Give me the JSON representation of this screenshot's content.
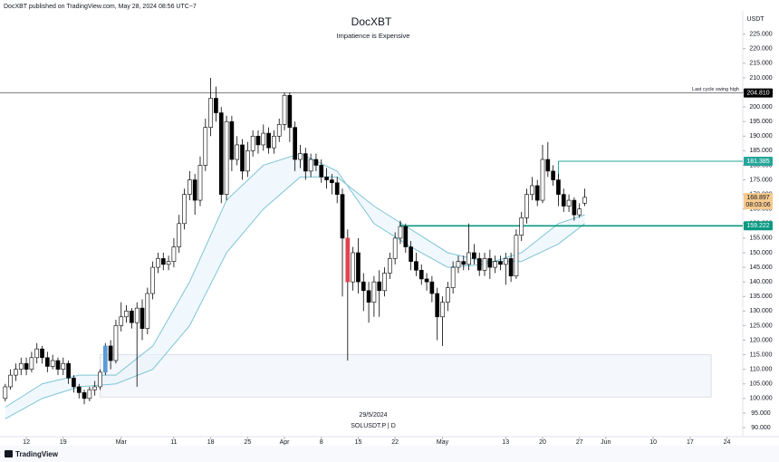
{
  "header": {
    "text": "DocXBT published on TradingView.com, May 28, 2024 08:56 UTC−7"
  },
  "footer": {
    "brand": "TradingView"
  },
  "chart_data": {
    "type": "candlestick",
    "title": "DocXBT",
    "subtitle": "Impatience is Expensive",
    "y_unit": "USDT",
    "symbol": "SOLUSDT.P | D",
    "crosshair_date": "29/5/2024",
    "x": [
      "2024-02-08",
      "2024-02-09",
      "2024-02-10",
      "2024-02-11",
      "2024-02-12",
      "2024-02-13",
      "2024-02-14",
      "2024-02-15",
      "2024-02-16",
      "2024-02-17",
      "2024-02-18",
      "2024-02-19",
      "2024-02-20",
      "2024-02-21",
      "2024-02-22",
      "2024-02-23",
      "2024-02-24",
      "2024-02-25",
      "2024-02-26",
      "2024-02-27",
      "2024-02-28",
      "2024-02-29",
      "2024-03-01",
      "2024-03-02",
      "2024-03-03",
      "2024-03-04",
      "2024-03-05",
      "2024-03-06",
      "2024-03-07",
      "2024-03-08",
      "2024-03-09",
      "2024-03-10",
      "2024-03-11",
      "2024-03-12",
      "2024-03-13",
      "2024-03-14",
      "2024-03-15",
      "2024-03-16",
      "2024-03-17",
      "2024-03-18",
      "2024-03-19",
      "2024-03-20",
      "2024-03-21",
      "2024-03-22",
      "2024-03-23",
      "2024-03-24",
      "2024-03-25",
      "2024-03-26",
      "2024-03-27",
      "2024-03-28",
      "2024-03-29",
      "2024-03-30",
      "2024-03-31",
      "2024-04-01",
      "2024-04-02",
      "2024-04-03",
      "2024-04-04",
      "2024-04-05",
      "2024-04-06",
      "2024-04-07",
      "2024-04-08",
      "2024-04-09",
      "2024-04-10",
      "2024-04-11",
      "2024-04-12",
      "2024-04-13",
      "2024-04-14",
      "2024-04-15",
      "2024-04-16",
      "2024-04-17",
      "2024-04-18",
      "2024-04-19",
      "2024-04-20",
      "2024-04-21",
      "2024-04-22",
      "2024-04-23",
      "2024-04-24",
      "2024-04-25",
      "2024-04-26",
      "2024-04-27",
      "2024-04-28",
      "2024-04-29",
      "2024-04-30",
      "2024-05-01",
      "2024-05-02",
      "2024-05-03",
      "2024-05-04",
      "2024-05-05",
      "2024-05-06",
      "2024-05-07",
      "2024-05-08",
      "2024-05-09",
      "2024-05-10",
      "2024-05-11",
      "2024-05-12",
      "2024-05-13",
      "2024-05-14",
      "2024-05-15",
      "2024-05-16",
      "2024-05-17",
      "2024-05-18",
      "2024-05-19",
      "2024-05-20",
      "2024-05-21",
      "2024-05-22",
      "2024-05-23",
      "2024-05-24",
      "2024-05-25",
      "2024-05-26",
      "2024-05-27",
      "2024-05-28"
    ],
    "series": [
      {
        "open": [
          100,
          104,
          108,
          110,
          112,
          110,
          114,
          117,
          114,
          111,
          113,
          110,
          112,
          107,
          104,
          102,
          100,
          103,
          104,
          109,
          118,
          113,
          125,
          128,
          130,
          126,
          131,
          124,
          136,
          145,
          148,
          146,
          147,
          152,
          160,
          170,
          175,
          168,
          180,
          193,
          203,
          198,
          170,
          195,
          182,
          187,
          178,
          185,
          190,
          187,
          191,
          186,
          190,
          194,
          204,
          193,
          182,
          184,
          178,
          182,
          180,
          176,
          175,
          174,
          170,
          155,
          140,
          150,
          140,
          137,
          133,
          140,
          137,
          143,
          148,
          155,
          159,
          152,
          147,
          144,
          141,
          140,
          136,
          128,
          133,
          138,
          145,
          147,
          146,
          150,
          148,
          144,
          148,
          145,
          147,
          146,
          148,
          142,
          156,
          162,
          170,
          173,
          168,
          182,
          178,
          175,
          170,
          166,
          168,
          163,
          167
        ],
        "high": [
          105,
          110,
          112,
          114,
          114,
          116,
          119,
          118,
          116,
          115,
          114,
          114,
          113,
          108,
          105,
          103,
          104,
          106,
          110,
          119,
          120,
          127,
          133,
          132,
          131,
          133,
          134,
          138,
          147,
          150,
          150,
          149,
          155,
          163,
          172,
          178,
          177,
          183,
          196,
          210,
          207,
          200,
          197,
          197,
          190,
          189,
          188,
          192,
          192,
          194,
          193,
          192,
          196,
          205,
          205,
          195,
          187,
          186,
          184,
          184,
          182,
          179,
          177,
          176,
          172,
          158,
          152,
          155,
          143,
          140,
          142,
          144,
          145,
          150,
          157,
          161,
          160,
          154,
          150,
          146,
          143,
          142,
          138,
          135,
          140,
          147,
          149,
          149,
          160,
          153,
          150,
          150,
          151,
          149,
          149,
          150,
          150,
          158,
          164,
          172,
          176,
          175,
          187,
          188,
          180,
          177,
          172,
          170,
          169,
          167,
          172
        ],
        "low": [
          99,
          103,
          106,
          108,
          108,
          109,
          112,
          112,
          109,
          110,
          108,
          108,
          105,
          102,
          100,
          98,
          99,
          101,
          103,
          108,
          110,
          112,
          123,
          126,
          124,
          104,
          120,
          122,
          134,
          143,
          144,
          144,
          145,
          150,
          158,
          168,
          163,
          166,
          178,
          190,
          195,
          167,
          168,
          178,
          180,
          175,
          176,
          183,
          184,
          185,
          184,
          184,
          188,
          192,
          188,
          178,
          179,
          175,
          176,
          178,
          174,
          172,
          170,
          167,
          135,
          113,
          137,
          136,
          130,
          126,
          128,
          128,
          135,
          141,
          146,
          153,
          150,
          144,
          142,
          139,
          137,
          133,
          120,
          118,
          130,
          136,
          143,
          144,
          144,
          146,
          142,
          142,
          141,
          143,
          144,
          139,
          140,
          141,
          154,
          160,
          168,
          166,
          167,
          176,
          173,
          166,
          164,
          164,
          161,
          162,
          166
        ],
        "close": [
          104,
          108,
          110,
          112,
          110,
          114,
          117,
          114,
          111,
          113,
          110,
          112,
          107,
          104,
          102,
          100,
          103,
          104,
          109,
          118,
          113,
          125,
          128,
          130,
          126,
          131,
          124,
          136,
          145,
          148,
          146,
          147,
          152,
          160,
          170,
          175,
          168,
          180,
          193,
          203,
          198,
          170,
          195,
          182,
          187,
          178,
          185,
          190,
          187,
          191,
          186,
          190,
          194,
          204,
          193,
          182,
          184,
          178,
          182,
          180,
          176,
          175,
          174,
          170,
          155,
          140,
          150,
          140,
          137,
          133,
          140,
          137,
          143,
          148,
          155,
          159,
          152,
          147,
          144,
          141,
          140,
          136,
          128,
          133,
          138,
          145,
          147,
          146,
          150,
          148,
          144,
          148,
          145,
          147,
          146,
          148,
          142,
          156,
          162,
          170,
          173,
          168,
          182,
          178,
          175,
          170,
          166,
          168,
          163,
          165,
          169
        ],
        "up_color": "#ffffff",
        "down_color": "#000000",
        "edge_color": "#000000"
      }
    ],
    "highlights": [
      {
        "x": "2024-02-27",
        "color": "#5b9bd5"
      },
      {
        "x": "2024-04-13",
        "color": "#e0434f"
      }
    ],
    "lines": [
      {
        "color": "#7ec4d6",
        "x": [
          "2024-02-08",
          "2024-02-15",
          "2024-02-22",
          "2024-02-29",
          "2024-03-07",
          "2024-03-14",
          "2024-03-21",
          "2024-03-28",
          "2024-04-04",
          "2024-04-11",
          "2024-04-18",
          "2024-04-25",
          "2024-05-02",
          "2024-05-09",
          "2024-05-16",
          "2024-05-23",
          "2024-05-28"
        ],
        "values": [
          97,
          105,
          108,
          108,
          118,
          140,
          168,
          180,
          184,
          178,
          160,
          152,
          145,
          146,
          150,
          160,
          163
        ]
      },
      {
        "color": "#7ec4d6",
        "x": [
          "2024-02-08",
          "2024-02-15",
          "2024-02-22",
          "2024-02-29",
          "2024-03-07",
          "2024-03-14",
          "2024-03-21",
          "2024-03-28",
          "2024-04-04",
          "2024-04-11",
          "2024-04-18",
          "2024-04-25",
          "2024-05-02",
          "2024-05-09",
          "2024-05-16",
          "2024-05-23",
          "2024-05-28"
        ],
        "values": [
          93,
          100,
          104,
          105,
          110,
          125,
          150,
          165,
          176,
          176,
          166,
          158,
          150,
          147,
          147,
          153,
          160
        ]
      }
    ],
    "zone": {
      "x": [
        "2024-02-26",
        "2024-06-21"
      ],
      "values": [
        100.5,
        115
      ]
    },
    "price_lines": [
      {
        "value": 204.81,
        "label": "204.810",
        "color": "#000000",
        "x": "2024-02-07",
        "text": "Last cycle swing high"
      },
      {
        "value": 181.385,
        "label": "181.385",
        "color": "#26a69a",
        "x": "2024-05-23"
      },
      {
        "value": 159.222,
        "label": "159.222",
        "color": "#089981",
        "x": "2024-04-23"
      }
    ],
    "last_price": {
      "value": 168.897,
      "countdown": "08:03:06",
      "color": "#f6c98d"
    },
    "xlim": [
      "2024-02-07",
      "2024-06-27"
    ],
    "ylim": [
      86.9,
      233.6
    ],
    "xticks": [
      {
        "value": "2024-02-12",
        "label": "12"
      },
      {
        "value": "2024-02-19",
        "label": "19"
      },
      {
        "value": "2024-03-01",
        "label": "Mar"
      },
      {
        "value": "2024-03-11",
        "label": "11"
      },
      {
        "value": "2024-03-18",
        "label": "18"
      },
      {
        "value": "2024-03-25",
        "label": "25"
      },
      {
        "value": "2024-04-01",
        "label": "Apr"
      },
      {
        "value": "2024-04-08",
        "label": "8"
      },
      {
        "value": "2024-04-15",
        "label": "15"
      },
      {
        "value": "2024-04-22",
        "label": "22"
      },
      {
        "value": "2024-05-01",
        "label": "May"
      },
      {
        "value": "2024-05-13",
        "label": "13"
      },
      {
        "value": "2024-05-20",
        "label": "20"
      },
      {
        "value": "2024-05-27",
        "label": "27"
      },
      {
        "value": "2024-06-01",
        "label": "Jun"
      },
      {
        "value": "2024-06-10",
        "label": "10"
      },
      {
        "value": "2024-06-17",
        "label": "17"
      },
      {
        "value": "2024-06-24",
        "label": "24"
      }
    ],
    "yticks": [
      {
        "value": 90,
        "label": "90.000"
      },
      {
        "value": 95,
        "label": "95.000"
      },
      {
        "value": 100,
        "label": "100.000"
      },
      {
        "value": 105,
        "label": "105.000"
      },
      {
        "value": 110,
        "label": "110.000"
      },
      {
        "value": 115,
        "label": "115.000"
      },
      {
        "value": 120,
        "label": "120.000"
      },
      {
        "value": 125,
        "label": "125.000"
      },
      {
        "value": 130,
        "label": "130.000"
      },
      {
        "value": 135,
        "label": "135.000"
      },
      {
        "value": 140,
        "label": "140.000"
      },
      {
        "value": 145,
        "label": "145.000"
      },
      {
        "value": 150,
        "label": "150.000"
      },
      {
        "value": 155,
        "label": "155.000"
      },
      {
        "value": 160,
        "label": "160.000"
      },
      {
        "value": 165,
        "label": "165.000"
      },
      {
        "value": 170,
        "label": "170.000"
      },
      {
        "value": 175,
        "label": "175.000"
      },
      {
        "value": 180,
        "label": "180.000"
      },
      {
        "value": 185,
        "label": "185.000"
      },
      {
        "value": 190,
        "label": "190.000"
      },
      {
        "value": 195,
        "label": "195.000"
      },
      {
        "value": 200,
        "label": "200.000"
      },
      {
        "value": 205,
        "label": "205.000"
      },
      {
        "value": 210,
        "label": "210.000"
      },
      {
        "value": 215,
        "label": "215.000"
      },
      {
        "value": 220,
        "label": "220.000"
      },
      {
        "value": 225,
        "label": "225.000"
      }
    ]
  }
}
